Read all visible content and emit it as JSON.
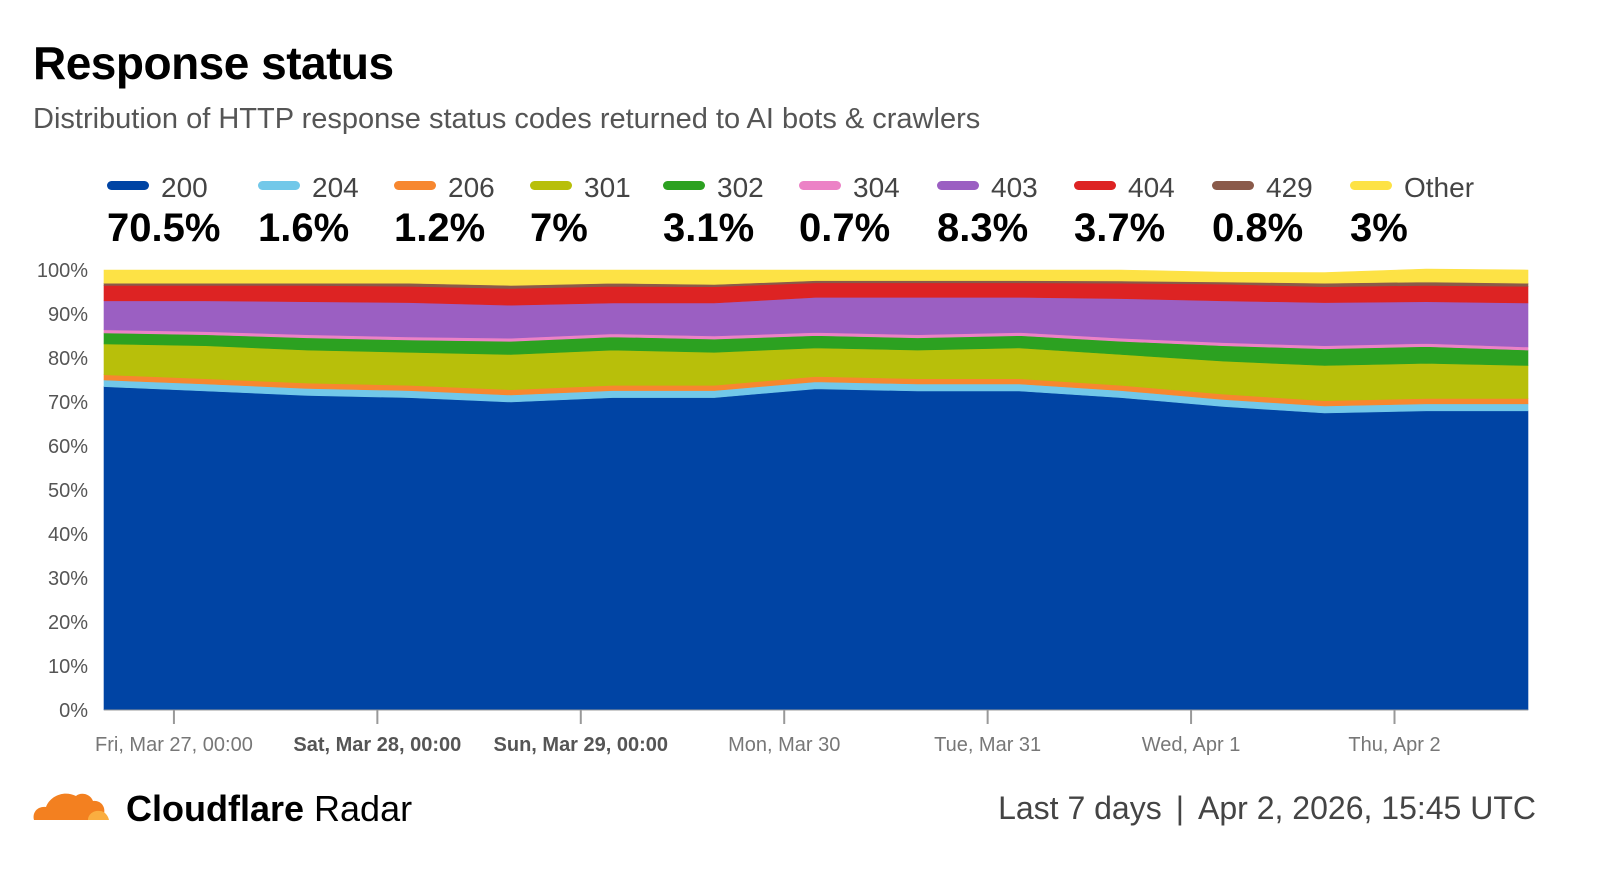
{
  "title": "Response status",
  "subtitle": "Distribution of HTTP response status codes returned to AI bots & crawlers",
  "legend": [
    {
      "name": "200",
      "value": "70.5%",
      "color": "#0044a4"
    },
    {
      "name": "204",
      "value": "1.6%",
      "color": "#72c8e9"
    },
    {
      "name": "206",
      "value": "1.2%",
      "color": "#f7872f"
    },
    {
      "name": "301",
      "value": "7%",
      "color": "#b8bf0a"
    },
    {
      "name": "302",
      "value": "3.1%",
      "color": "#2ca121"
    },
    {
      "name": "304",
      "value": "0.7%",
      "color": "#ec82c6"
    },
    {
      "name": "403",
      "value": "8.3%",
      "color": "#9b5fc2"
    },
    {
      "name": "404",
      "value": "3.7%",
      "color": "#dd2323"
    },
    {
      "name": "429",
      "value": "0.8%",
      "color": "#8a5a4a"
    },
    {
      "name": "Other",
      "value": "3%",
      "color": "#fde245"
    }
  ],
  "chart_data": {
    "type": "area",
    "stacked": true,
    "ylim": [
      0,
      100
    ],
    "y_ticks": [
      "0%",
      "10%",
      "20%",
      "30%",
      "40%",
      "50%",
      "60%",
      "70%",
      "80%",
      "90%",
      "100%"
    ],
    "x_ticks": [
      {
        "label": "Fri, Mar 27, 00:00",
        "bold": false
      },
      {
        "label": "Sat, Mar 28, 00:00",
        "bold": true
      },
      {
        "label": "Sun, Mar 29, 00:00",
        "bold": true
      },
      {
        "label": "Mon, Mar 30",
        "bold": false
      },
      {
        "label": "Tue, Mar 31",
        "bold": false
      },
      {
        "label": "Wed, Apr 1",
        "bold": false
      },
      {
        "label": "Thu, Apr 2",
        "bold": false
      }
    ],
    "x_range": [
      "2026-03-26T15:45",
      "2026-04-02T15:45"
    ],
    "x_tick_dates": [
      "2026-03-27T00:00",
      "2026-03-28T00:00",
      "2026-03-29T00:00",
      "2026-03-30T00:00",
      "2026-03-31T00:00",
      "2026-04-01T00:00",
      "2026-04-02T00:00"
    ],
    "x": [
      "2026-03-26T15:45",
      "2026-03-27T03:45",
      "2026-03-27T15:45",
      "2026-03-28T03:45",
      "2026-03-28T15:45",
      "2026-03-29T03:45",
      "2026-03-29T15:45",
      "2026-03-30T03:45",
      "2026-03-30T15:45",
      "2026-03-31T03:45",
      "2026-03-31T15:45",
      "2026-04-01T03:45",
      "2026-04-01T15:45",
      "2026-04-02T03:45",
      "2026-04-02T15:45"
    ],
    "series": [
      {
        "name": "200",
        "color": "#0044a4",
        "values": [
          73.5,
          72.5,
          71.5,
          71,
          70,
          71,
          71,
          73,
          72.5,
          72.5,
          71,
          69,
          67.5,
          68,
          68
        ]
      },
      {
        "name": "204",
        "color": "#72c8e9",
        "values": [
          1.5,
          1.6,
          1.6,
          1.6,
          1.6,
          1.6,
          1.6,
          1.6,
          1.6,
          1.6,
          1.6,
          1.6,
          1.6,
          1.6,
          1.6
        ]
      },
      {
        "name": "206",
        "color": "#f7872f",
        "values": [
          1.2,
          1.2,
          1.2,
          1.2,
          1.2,
          1.2,
          1.2,
          1.2,
          1.2,
          1.2,
          1.2,
          1.2,
          1.2,
          1.2,
          1.2
        ]
      },
      {
        "name": "301",
        "color": "#b8bf0a",
        "values": [
          7,
          7.5,
          7.5,
          7.5,
          8,
          8,
          7.5,
          6.5,
          6.5,
          7,
          7,
          7.5,
          8,
          8,
          7.5
        ]
      },
      {
        "name": "302",
        "color": "#2ca121",
        "values": [
          2.5,
          2.5,
          2.8,
          2.8,
          3,
          3,
          3,
          2.8,
          2.8,
          2.8,
          3,
          3.5,
          3.8,
          3.8,
          3.5
        ]
      },
      {
        "name": "304",
        "color": "#ec82c6",
        "values": [
          0.7,
          0.7,
          0.7,
          0.7,
          0.7,
          0.7,
          0.7,
          0.7,
          0.7,
          0.7,
          0.7,
          0.7,
          0.7,
          0.7,
          0.7
        ]
      },
      {
        "name": "403",
        "color": "#9b5fc2",
        "values": [
          6.6,
          7,
          7.5,
          7.8,
          7.5,
          7,
          7.5,
          8,
          8.5,
          8,
          9,
          9.5,
          9.8,
          9.5,
          10
        ]
      },
      {
        "name": "404",
        "color": "#dd2323",
        "values": [
          3.5,
          3.5,
          3.7,
          3.7,
          3.8,
          3.8,
          3.7,
          3.3,
          3.3,
          3.3,
          3.5,
          3.8,
          3.6,
          3.7,
          3.8
        ]
      },
      {
        "name": "429",
        "color": "#8a5a4a",
        "values": [
          0.5,
          0.5,
          0.5,
          0.7,
          0.7,
          0.7,
          0.5,
          0.5,
          0.5,
          0.5,
          0.5,
          0.5,
          0.8,
          0.8,
          0.7
        ]
      },
      {
        "name": "Other",
        "color": "#fde245",
        "values": [
          3,
          3,
          3,
          3,
          3.5,
          3,
          3.3,
          2.4,
          2.4,
          2.4,
          2.5,
          2.2,
          2.4,
          2.9,
          3
        ]
      }
    ]
  },
  "footer": {
    "brand_bold": "Cloudflare",
    "brand_light": "Radar",
    "range": "Last 7 days",
    "separator": "|",
    "timestamp": "Apr 2, 2026, 15:45 UTC"
  },
  "logo": {
    "color_main": "#f38020",
    "color_light": "#faae40"
  }
}
